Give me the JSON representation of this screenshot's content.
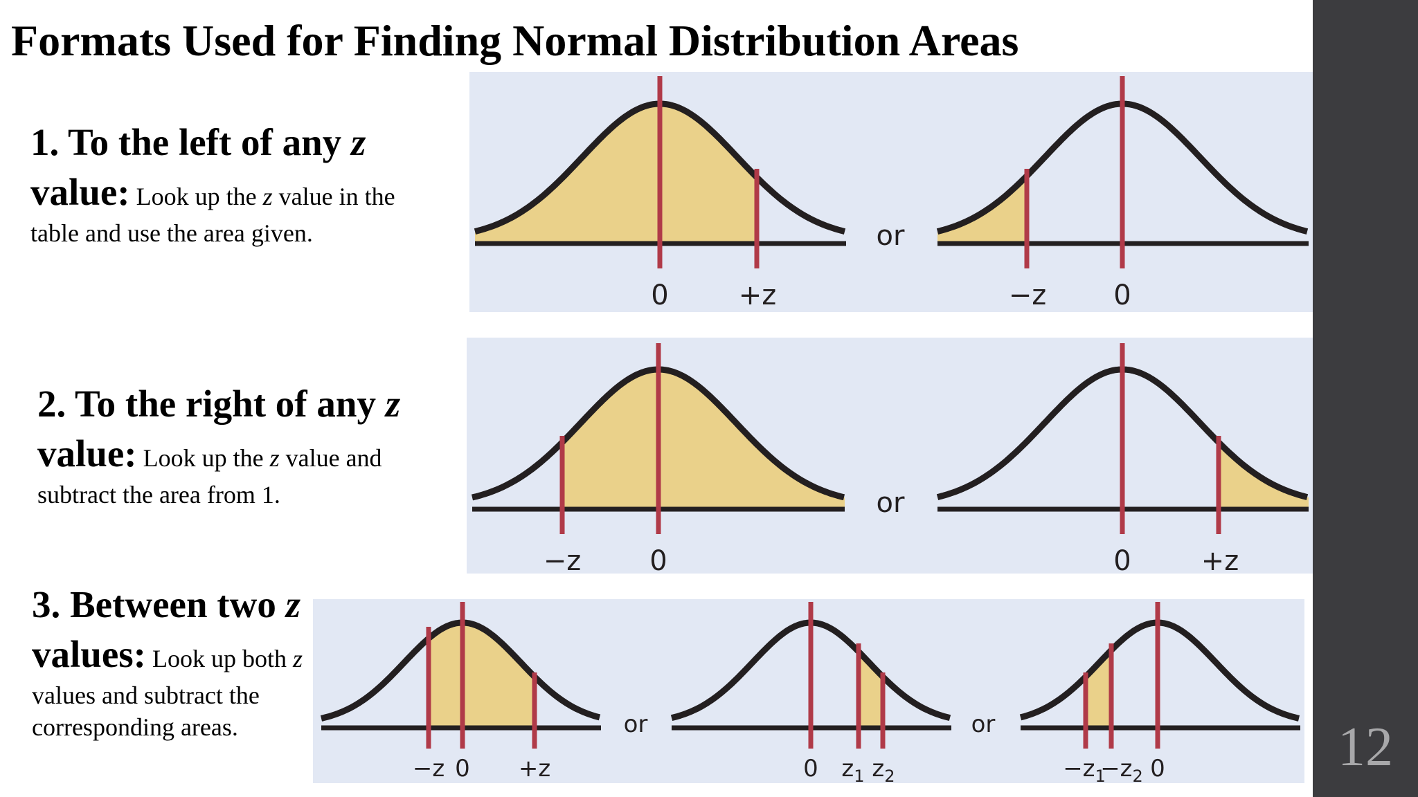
{
  "slide": {
    "title": "Formats Used for Finding Normal Distribution Areas",
    "page_number": "12"
  },
  "sections": [
    {
      "heading_pre": "1. To the left of any ",
      "heading_var": "z",
      "heading_post": " value:",
      "body_pre": " Look up the ",
      "body_var": "z",
      "body_post": " value in the table and use the area given."
    },
    {
      "heading_pre": "2. To the right of any ",
      "heading_var": "z",
      "heading_post": " value:",
      "body_pre": " Look up the ",
      "body_var": "z",
      "body_post": " value and subtract the area from 1."
    },
    {
      "heading_pre": "3. Between two ",
      "heading_var": "z",
      "heading_post": " values:",
      "body_pre": " Look up both ",
      "body_var": "z",
      "body_post": " values and subtract the corresponding areas."
    }
  ],
  "diagram_labels": {
    "or": "or",
    "zero": "0",
    "plus_z": "+z",
    "minus_z": "−z",
    "z1": "z",
    "z2": "z",
    "sub1": "1",
    "sub2": "2",
    "minus_z1": "−z",
    "minus_z2": "−z"
  },
  "colors": {
    "panel_background": "#e2e8f4",
    "shaded_area": "#ead18a",
    "z_marker": "#b03a48",
    "curve": "#231f20",
    "sidebar": "#3c3c3f"
  }
}
